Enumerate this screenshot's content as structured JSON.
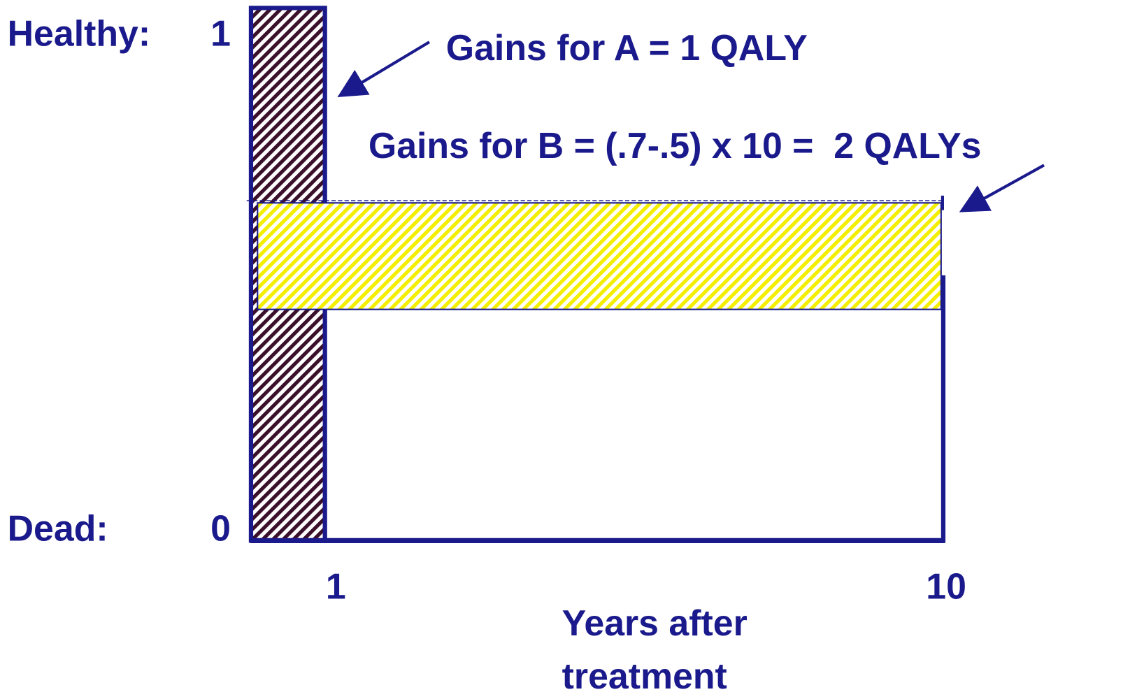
{
  "y_axis": {
    "top_label": "Healthy:",
    "top_value": "1",
    "bottom_label": "Dead:",
    "bottom_value": "0"
  },
  "x_axis": {
    "ticks": [
      "1",
      "10"
    ],
    "title_lines": [
      "Years after",
      "treatment"
    ]
  },
  "annotations": [
    "Gains for A = 1 QALY",
    "Gains for B = (.7-.5) x 10 =  2 QALYs"
  ]
}
